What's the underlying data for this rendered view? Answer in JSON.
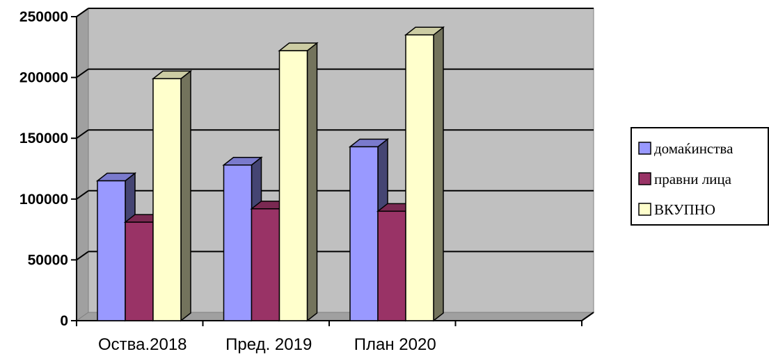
{
  "chart_data": {
    "type": "bar",
    "categories": [
      "Оства.2018",
      "Пред. 2019",
      "План 2020",
      ""
    ],
    "series": [
      {
        "name": "домаќинства",
        "values": [
          115000,
          128000,
          143000,
          null
        ],
        "color": "#9999ff"
      },
      {
        "name": "правни лица",
        "values": [
          81000,
          92000,
          90000,
          null
        ],
        "color": "#993366"
      },
      {
        "name": "ВКУПНО",
        "values": [
          199000,
          222000,
          235000,
          null
        ],
        "color": "#ffffcc"
      }
    ],
    "ylim": [
      0,
      250000
    ],
    "yticks": [
      0,
      50000,
      100000,
      150000,
      200000,
      250000
    ],
    "grid": true,
    "legend_position": "right",
    "plot_background": "#c0c0c0",
    "style": "3d-clustered-column"
  }
}
